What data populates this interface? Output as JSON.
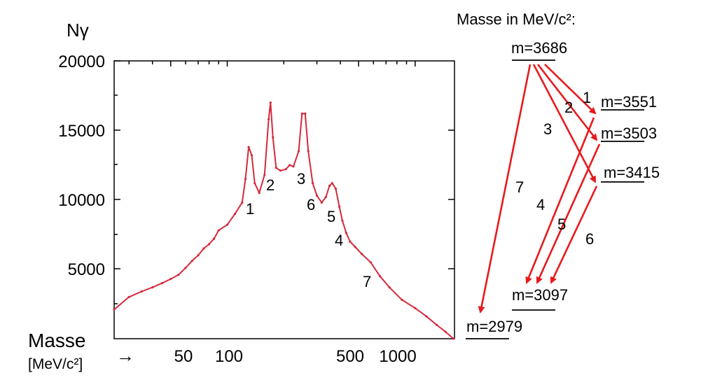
{
  "chart": {
    "y_axis_label": "Nγ",
    "y_ticks": [
      "20000",
      "15000",
      "10000",
      "5000"
    ],
    "x_axis_label": "Masse",
    "x_axis_unit": "[MeV/c²]",
    "x_arrow": "→",
    "x_ticks": [
      "50",
      "100",
      "500",
      "1000"
    ],
    "peak_labels": [
      "1",
      "2",
      "3",
      "6",
      "5",
      "4",
      "7"
    ]
  },
  "chart_data": {
    "type": "line",
    "x_scale": "log",
    "y_range": [
      0,
      20000
    ],
    "color": "#d42a3c",
    "points": [
      [
        25,
        2100
      ],
      [
        30,
        3000
      ],
      [
        35,
        3400
      ],
      [
        40,
        3700
      ],
      [
        45,
        4000
      ],
      [
        50,
        4300
      ],
      [
        55,
        4600
      ],
      [
        60,
        5100
      ],
      [
        65,
        5600
      ],
      [
        70,
        6000
      ],
      [
        75,
        6500
      ],
      [
        80,
        6800
      ],
      [
        85,
        7200
      ],
      [
        90,
        7800
      ],
      [
        100,
        8200
      ],
      [
        110,
        9000
      ],
      [
        120,
        9800
      ],
      [
        125,
        11500
      ],
      [
        130,
        13800
      ],
      [
        135,
        13200
      ],
      [
        140,
        11200
      ],
      [
        148,
        10500
      ],
      [
        158,
        11800
      ],
      [
        166,
        15800
      ],
      [
        170,
        17000
      ],
      [
        175,
        14500
      ],
      [
        182,
        12300
      ],
      [
        192,
        12100
      ],
      [
        205,
        12200
      ],
      [
        215,
        12500
      ],
      [
        225,
        12400
      ],
      [
        240,
        13500
      ],
      [
        250,
        16200
      ],
      [
        260,
        16200
      ],
      [
        270,
        13500
      ],
      [
        285,
        11200
      ],
      [
        300,
        10300
      ],
      [
        318,
        9800
      ],
      [
        335,
        10200
      ],
      [
        350,
        11000
      ],
      [
        362,
        11200
      ],
      [
        378,
        10800
      ],
      [
        395,
        9500
      ],
      [
        410,
        8500
      ],
      [
        430,
        7600
      ],
      [
        450,
        7000
      ],
      [
        480,
        6600
      ],
      [
        520,
        6100
      ],
      [
        580,
        5500
      ],
      [
        650,
        4500
      ],
      [
        730,
        3700
      ],
      [
        850,
        2800
      ],
      [
        1000,
        2200
      ],
      [
        1150,
        1600
      ],
      [
        1300,
        1000
      ],
      [
        1450,
        500
      ],
      [
        1600,
        0
      ]
    ]
  },
  "levels_panel": {
    "title": "Masse in MeV/c²:",
    "levels": [
      "m=3686",
      "m=3551",
      "m=3503",
      "m=3415",
      "m=3097",
      "m=2979"
    ],
    "transition_labels": [
      "1",
      "2",
      "3",
      "7",
      "4",
      "5",
      "6"
    ],
    "arrow_color": "#e8191c"
  }
}
